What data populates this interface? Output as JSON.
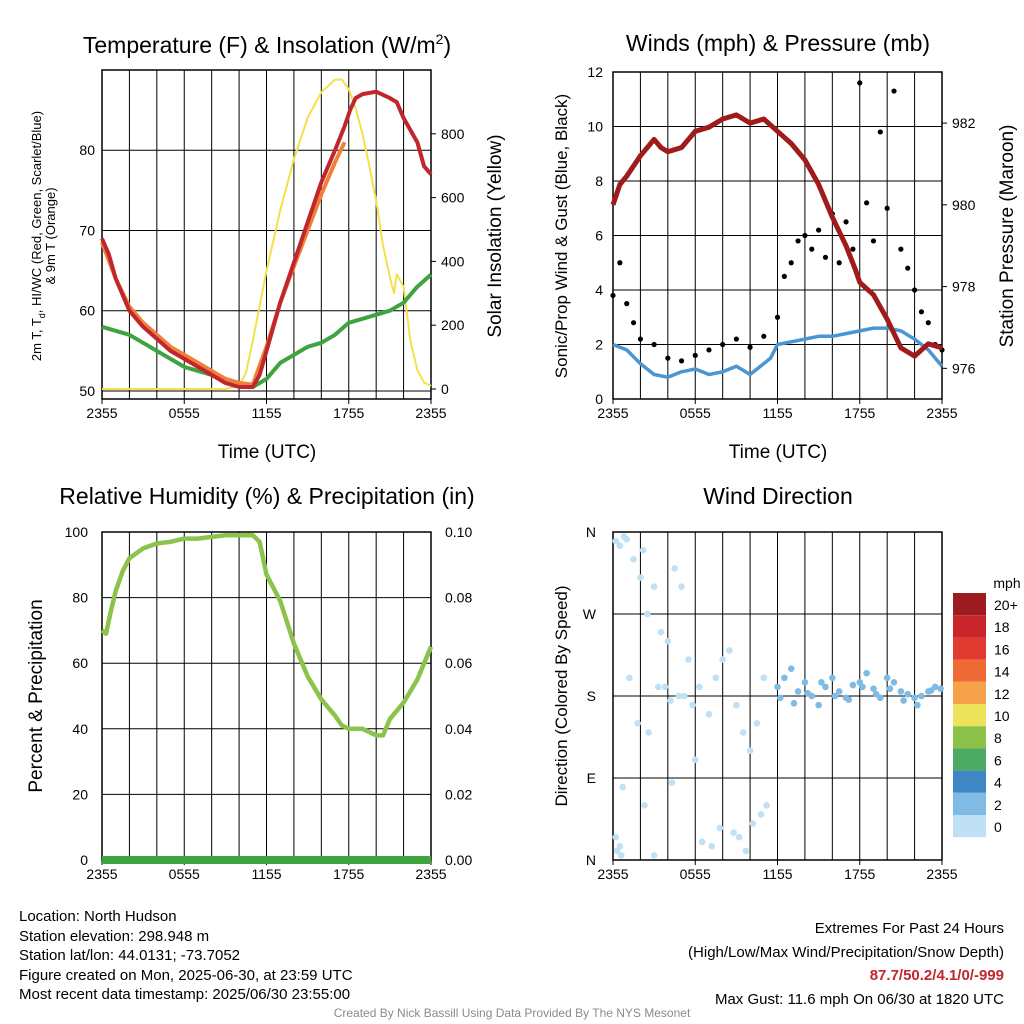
{
  "panels": {
    "temp": {
      "title_main": "Temperature (F) & Insolation (W/m",
      "title_sup": "2",
      "title_end": ")",
      "ylabel_left_line1": "2m T, T",
      "ylabel_left_sub": "d",
      "ylabel_left_line1_end": ", HI/WC (Red, Green, Scarlet/Blue)",
      "ylabel_left_line2": "& 9m T (Orange)",
      "ylabel_right": "Solar Insolation (Yellow)",
      "xlabel": "Time (UTC)"
    },
    "winds": {
      "title": "Winds (mph) & Pressure (mb)",
      "ylabel_left": "Sonic/Prop Wind & Gust (Blue, Black)",
      "ylabel_right": "Station Pressure (Maroon)",
      "xlabel": "Time (UTC)"
    },
    "rh": {
      "title": "Relative Humidity (%) & Precipitation (in)",
      "ylabel_left": "Percent & Precipitation"
    },
    "wdir": {
      "title": "Wind Direction",
      "ylabel_left": "Direction (Colored By Speed)",
      "legend_title": "mph"
    }
  },
  "info": {
    "location": "Location: North Hudson",
    "elevation": "Station elevation: 298.948 m",
    "latlon": "Station lat/lon: 44.0131; -73.7052",
    "created": "Figure created on Mon, 2025-06-30, at 23:59 UTC",
    "recent": "Most recent data timestamp: 2025/06/30 23:55:00",
    "extremes_title": "Extremes For Past 24 Hours",
    "extremes_sub": "(High/Low/Max Wind/Precipitation/Snow Depth)",
    "extremes_values": "87.7/50.2/4.1/0/-999",
    "max_gust": "Max Gust: 11.6 mph On 06/30 at 1820 UTC",
    "credit": "Created By Nick Bassill Using Data Provided By The NYS Mesonet"
  },
  "colors": {
    "temp_red": "#c0272d",
    "temp_orange": "#f07f3c",
    "dewpoint_green": "#3fa33f",
    "insolation_yellow": "#f5e04b",
    "wind_blue": "#4b96d2",
    "gust_black": "#000000",
    "pressure_maroon": "#a01c1c",
    "rh_green": "#8cc34a",
    "precip_green": "#3fa33f"
  },
  "chart_data": [
    {
      "type": "line",
      "title": "Temperature (F) & Insolation (W/m2)",
      "xlabel": "Time (UTC)",
      "ylabel": "2m T, Td, HI/WC (Red, Green, Scarlet/Blue) & 9m T (Orange)",
      "y2label": "Solar Insolation (Yellow)",
      "x_ticks": [
        "2355",
        "0555",
        "1155",
        "1755",
        "2355"
      ],
      "x_hours": [
        0,
        2,
        4,
        6,
        8,
        10,
        12,
        14,
        16,
        18,
        20,
        22,
        24
      ],
      "ylim": [
        49,
        90
      ],
      "y_ticks": [
        50,
        60,
        70,
        80
      ],
      "y2lim": [
        0,
        1000
      ],
      "y2_ticks": [
        0,
        200,
        400,
        600,
        800
      ],
      "grid": true,
      "series": [
        {
          "name": "2m T",
          "color": "#c0272d",
          "axis": "left",
          "x": [
            0,
            0.5,
            1,
            2,
            3,
            4,
            5,
            6,
            7,
            8,
            9,
            10,
            11,
            11.5,
            12,
            13,
            14,
            15,
            16,
            17,
            17.7,
            18.1,
            18.5,
            19,
            20,
            21,
            21.5,
            22,
            23,
            23.5,
            24
          ],
          "y": [
            69,
            67,
            64,
            60,
            58,
            56.5,
            55,
            54,
            53,
            52,
            51,
            50.5,
            50.5,
            52,
            55,
            61,
            66,
            71,
            76,
            80,
            83,
            85,
            86.5,
            87,
            87.3,
            86.5,
            86,
            84,
            81,
            78,
            77
          ]
        },
        {
          "name": "9m T",
          "color": "#f07f3c",
          "axis": "left",
          "x": [
            0,
            1,
            2,
            3,
            4,
            5,
            6,
            7,
            8,
            9,
            10,
            11,
            12,
            13,
            14,
            15,
            16,
            17,
            17.7
          ],
          "y": [
            68.5,
            64,
            60.5,
            58.5,
            57,
            55.5,
            54.5,
            53.5,
            52.5,
            51.5,
            51,
            50.8,
            55.5,
            61,
            65.5,
            70,
            74.5,
            78.5,
            81
          ]
        },
        {
          "name": "2m Td",
          "color": "#3fa33f",
          "axis": "left",
          "x": [
            0,
            1,
            2,
            3,
            4,
            5,
            6,
            7,
            8,
            9,
            10,
            11,
            11.5,
            12,
            13,
            14,
            15,
            16,
            17,
            18,
            19,
            20,
            21,
            22,
            23,
            24
          ],
          "y": [
            58,
            57.5,
            57,
            56,
            55,
            54,
            53,
            52.5,
            52,
            51.5,
            51,
            50.5,
            51,
            51.5,
            53.5,
            54.5,
            55.5,
            56,
            57,
            58.5,
            59,
            59.5,
            60,
            61,
            63,
            64.5
          ]
        },
        {
          "name": "Solar Insolation",
          "color": "#f5e04b",
          "axis": "right",
          "x": [
            0,
            0.3,
            1,
            2,
            3,
            4,
            5,
            6,
            7,
            8,
            9,
            10,
            10.5,
            11,
            11.5,
            12,
            13,
            14,
            15,
            16,
            17,
            17.5,
            18,
            18.5,
            19,
            19.5,
            20,
            20.5,
            21,
            21.3,
            21.5,
            22,
            22.5,
            23,
            23.5,
            24
          ],
          "y": [
            0,
            0,
            0,
            0,
            0,
            0,
            0,
            0,
            0,
            0,
            0,
            10,
            50,
            150,
            260,
            370,
            560,
            720,
            850,
            930,
            970,
            970,
            940,
            880,
            800,
            700,
            590,
            450,
            350,
            300,
            360,
            320,
            150,
            60,
            20,
            10
          ]
        }
      ]
    },
    {
      "type": "line",
      "title": "Winds (mph) & Pressure (mb)",
      "xlabel": "Time (UTC)",
      "ylabel": "Sonic/Prop Wind & Gust (Blue, Black)",
      "y2label": "Station Pressure (Maroon)",
      "x_ticks": [
        "2355",
        "0555",
        "1155",
        "1755",
        "2355"
      ],
      "ylim": [
        0,
        12
      ],
      "y_ticks": [
        0,
        2,
        4,
        6,
        8,
        10,
        12
      ],
      "y2lim": [
        975.25,
        983.25
      ],
      "y2_ticks": [
        976,
        978,
        980,
        982
      ],
      "grid": true,
      "series": [
        {
          "name": "Wind",
          "color": "#4b96d2",
          "axis": "left",
          "x": [
            0,
            1,
            2,
            3,
            4,
            5,
            6,
            7,
            8,
            9,
            10,
            11,
            11.5,
            12,
            13,
            14,
            15,
            16,
            17,
            18,
            19,
            20,
            21,
            22,
            23,
            24
          ],
          "y": [
            2,
            1.8,
            1.3,
            0.9,
            0.8,
            1.0,
            1.1,
            0.9,
            1.0,
            1.2,
            0.9,
            1.3,
            1.5,
            2.0,
            2.1,
            2.2,
            2.3,
            2.3,
            2.4,
            2.5,
            2.6,
            2.6,
            2.5,
            2.2,
            1.8,
            1.2
          ]
        },
        {
          "name": "Gust",
          "color": "#000000",
          "axis": "left",
          "marker": "dot",
          "x": [
            0,
            0.5,
            1,
            1.5,
            2,
            3,
            4,
            5,
            6,
            7,
            8,
            9,
            10,
            11,
            12,
            12.5,
            13,
            13.5,
            14,
            14.5,
            15,
            15.5,
            16,
            16.5,
            17,
            17.5,
            18,
            18.5,
            19,
            19.5,
            20,
            20.5,
            21,
            21.5,
            22,
            22.5,
            23,
            23.5,
            24
          ],
          "y": [
            3.8,
            5.0,
            3.5,
            2.8,
            2.2,
            2.0,
            1.5,
            1.4,
            1.6,
            1.8,
            2.0,
            2.2,
            1.9,
            2.3,
            3.0,
            4.5,
            5.0,
            5.8,
            6.0,
            5.5,
            6.2,
            5.2,
            6.8,
            5.0,
            6.5,
            5.5,
            11.6,
            7.2,
            5.8,
            9.8,
            7.0,
            11.3,
            5.5,
            4.8,
            4.0,
            3.2,
            2.8,
            2.0,
            1.8
          ]
        },
        {
          "name": "Station Pressure",
          "color": "#a01c1c",
          "axis": "right",
          "x": [
            0,
            0.5,
            1,
            2,
            3,
            3.5,
            4,
            5,
            6,
            7,
            8,
            9,
            10,
            11,
            12,
            13,
            14,
            15,
            16,
            17,
            17.7,
            18,
            19,
            20,
            21,
            22,
            23,
            24
          ],
          "y": [
            980.0,
            980.5,
            980.7,
            981.2,
            981.6,
            981.4,
            981.3,
            981.4,
            981.8,
            981.9,
            982.1,
            982.2,
            982.0,
            982.1,
            981.8,
            981.5,
            981.1,
            980.5,
            979.7,
            979.0,
            978.4,
            978.1,
            977.8,
            977.2,
            976.5,
            976.3,
            976.6,
            976.5
          ]
        }
      ]
    },
    {
      "type": "line",
      "title": "Relative Humidity (%) & Precipitation (in)",
      "ylabel": "Percent & Precipitation",
      "x_ticks": [
        "2355",
        "0555",
        "1155",
        "1755",
        "2355"
      ],
      "ylim": [
        0,
        100
      ],
      "y_ticks": [
        0,
        20,
        40,
        60,
        80,
        100
      ],
      "y2lim": [
        0,
        0.1
      ],
      "y2_ticks": [
        "0.00",
        "0.02",
        "0.04",
        "0.06",
        "0.08",
        "0.10"
      ],
      "grid": true,
      "series": [
        {
          "name": "RH",
          "color": "#8cc34a",
          "axis": "left",
          "x": [
            0,
            0.3,
            0.6,
            1,
            1.5,
            2,
            3,
            4,
            5,
            6,
            7,
            8,
            9,
            10,
            11,
            11.5,
            12,
            13,
            14,
            15,
            16,
            17,
            17.5,
            18,
            19,
            20,
            20.5,
            21,
            22,
            23,
            24
          ],
          "y": [
            70,
            69,
            75,
            82,
            88,
            92,
            95,
            96.5,
            97,
            98,
            98,
            98.5,
            99,
            99,
            99,
            97,
            87,
            79,
            66,
            56,
            49,
            44,
            41,
            40,
            40,
            38,
            38,
            43,
            48,
            55,
            65
          ]
        },
        {
          "name": "Precipitation",
          "color": "#3fa33f",
          "axis": "right",
          "x": [
            0,
            24
          ],
          "y": [
            0,
            0
          ]
        }
      ]
    },
    {
      "type": "scatter",
      "title": "Wind Direction",
      "ylabel": "Direction (Colored By Speed)",
      "x_ticks": [
        "2355",
        "0555",
        "1155",
        "1755",
        "2355"
      ],
      "y_ticks": [
        "N",
        "E",
        "S",
        "W",
        "N"
      ],
      "ylim": [
        0,
        360
      ],
      "legend_title": "mph",
      "legend": [
        "20+",
        "18",
        "16",
        "14",
        "12",
        "10",
        "8",
        "6",
        "4",
        "2",
        "0"
      ],
      "legend_colors": [
        "#9b1b20",
        "#c8262b",
        "#e13a30",
        "#ef6b33",
        "#f6a24a",
        "#ede35a",
        "#8cc24a",
        "#4daa63",
        "#3f86c4",
        "#7fbbe4",
        "#bfe0f5"
      ],
      "x": [
        0.2,
        0.5,
        0.8,
        1.0,
        0.3,
        0.6,
        0.2,
        0.5,
        1.5,
        2.0,
        2.5,
        3.0,
        2.2,
        3.5,
        4.0,
        4.5,
        5.0,
        3.8,
        1.2,
        1.8,
        2.6,
        3.3,
        4.2,
        5.2,
        5.8,
        6.3,
        7.0,
        7.5,
        8.0,
        8.5,
        9.0,
        9.5,
        10.0,
        10.5,
        11.0,
        6.5,
        7.2,
        8.8,
        9.7,
        10.2,
        10.8,
        11.2,
        5.5,
        6.0,
        7.8,
        9.2,
        3.0,
        4.8,
        12.0,
        12.5,
        13.0,
        13.5,
        14.0,
        14.5,
        15.0,
        15.5,
        16.0,
        16.5,
        17.0,
        17.5,
        18.0,
        18.5,
        19.0,
        19.5,
        20.0,
        20.5,
        21.0,
        21.5,
        22.0,
        22.5,
        23.0,
        23.5,
        23.9,
        12.2,
        13.2,
        14.2,
        15.2,
        16.2,
        17.2,
        18.2,
        19.2,
        20.2,
        21.2,
        22.2,
        23.2,
        0.7,
        2.3,
        4.3
      ],
      "y": [
        350,
        345,
        355,
        352,
        10,
        5,
        25,
        15,
        330,
        310,
        270,
        300,
        340,
        250,
        240,
        320,
        300,
        190,
        200,
        150,
        140,
        190,
        175,
        180,
        170,
        190,
        160,
        200,
        220,
        230,
        170,
        140,
        120,
        150,
        200,
        20,
        15,
        30,
        10,
        40,
        50,
        60,
        220,
        110,
        35,
        25,
        5,
        180,
        190,
        200,
        210,
        185,
        195,
        180,
        170,
        190,
        200,
        185,
        178,
        192,
        195,
        205,
        188,
        178,
        200,
        195,
        185,
        182,
        178,
        180,
        185,
        190,
        188,
        178,
        172,
        183,
        195,
        180,
        176,
        190,
        182,
        188,
        175,
        170,
        186,
        80,
        60,
        85
      ]
    }
  ]
}
